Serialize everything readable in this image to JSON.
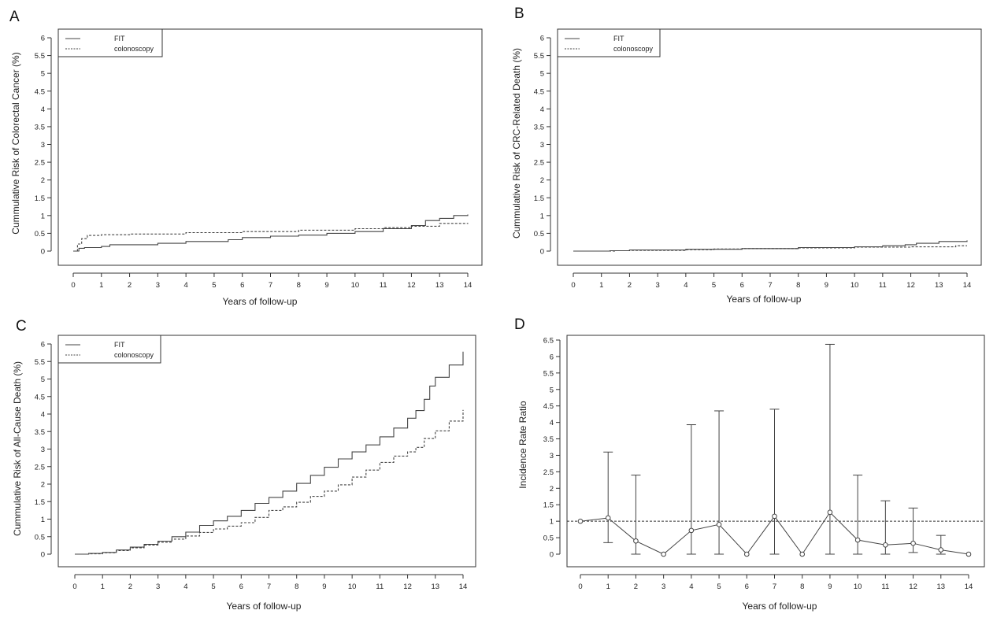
{
  "colors": {
    "axis": "#333333",
    "line": "#444444",
    "background": "#ffffff"
  },
  "chart_data": [
    {
      "id": "A",
      "type": "line",
      "panel_label": "A",
      "xlabel": "Years of follow-up",
      "ylabel": "Cummulative Risk of Colorectal Cancer (%)",
      "xlim": [
        0,
        14
      ],
      "ylim": [
        0,
        6
      ],
      "xticks": [
        "0",
        "1",
        "2",
        "3",
        "4",
        "5",
        "6",
        "7",
        "8",
        "9",
        "10",
        "11",
        "12",
        "13",
        "14"
      ],
      "yticks": [
        "0",
        "0.5",
        "1",
        "1.5",
        "2",
        "2.5",
        "3",
        "3.5",
        "4",
        "4.5",
        "5",
        "5.5",
        "6"
      ],
      "legend_position": "top-left",
      "series": [
        {
          "name": "FIT",
          "style": "solid",
          "x": [
            0,
            0.2,
            0.4,
            1.0,
            1.3,
            3.0,
            4.0,
            5.5,
            6.0,
            7.0,
            8.0,
            9.0,
            10.0,
            11.0,
            12.0,
            12.5,
            13.0,
            13.5,
            14.0
          ],
          "y": [
            0,
            0.08,
            0.1,
            0.13,
            0.18,
            0.22,
            0.27,
            0.32,
            0.38,
            0.42,
            0.45,
            0.5,
            0.55,
            0.63,
            0.72,
            0.86,
            0.92,
            1.0,
            1.03
          ]
        },
        {
          "name": "colonoscopy",
          "style": "dashed",
          "x": [
            0,
            0.15,
            0.3,
            0.5,
            1.0,
            2.0,
            4.0,
            6.0,
            8.0,
            10.0,
            11.0,
            12.0,
            13.0,
            14.0
          ],
          "y": [
            0,
            0.2,
            0.35,
            0.44,
            0.46,
            0.48,
            0.52,
            0.55,
            0.59,
            0.63,
            0.66,
            0.7,
            0.78,
            0.79
          ]
        }
      ]
    },
    {
      "id": "B",
      "type": "line",
      "panel_label": "B",
      "xlabel": "Years of follow-up",
      "ylabel": "Cummulative Risk of CRC-Related Death (%)",
      "xlim": [
        0,
        14
      ],
      "ylim": [
        0,
        6
      ],
      "xticks": [
        "0",
        "1",
        "2",
        "3",
        "4",
        "5",
        "6",
        "7",
        "8",
        "9",
        "10",
        "11",
        "12",
        "13",
        "14"
      ],
      "yticks": [
        "0",
        "0.5",
        "1",
        "1.5",
        "2",
        "2.5",
        "3",
        "3.5",
        "4",
        "4.5",
        "5",
        "5.5",
        "6"
      ],
      "legend_position": "top-left",
      "series": [
        {
          "name": "FIT",
          "style": "solid",
          "x": [
            0,
            1.3,
            2.0,
            4.0,
            6.0,
            8.0,
            10.0,
            11.0,
            11.8,
            12.2,
            13.0,
            14.0
          ],
          "y": [
            0,
            0.01,
            0.03,
            0.05,
            0.07,
            0.1,
            0.12,
            0.15,
            0.18,
            0.22,
            0.27,
            0.3
          ]
        },
        {
          "name": "colonoscopy",
          "style": "dashed",
          "x": [
            0,
            1.5,
            2.0,
            4.0,
            5.0,
            6.0,
            8.0,
            10.0,
            12.0,
            13.0,
            13.6,
            14.0
          ],
          "y": [
            0,
            0.01,
            0.02,
            0.04,
            0.06,
            0.07,
            0.09,
            0.11,
            0.12,
            0.12,
            0.15,
            0.15
          ]
        }
      ]
    },
    {
      "id": "C",
      "type": "line",
      "panel_label": "C",
      "xlabel": "Years of follow-up",
      "ylabel": "Cummulative Risk of All-Cause Death (%)",
      "xlim": [
        0,
        14
      ],
      "ylim": [
        0,
        6
      ],
      "xticks": [
        "0",
        "1",
        "2",
        "3",
        "4",
        "5",
        "6",
        "7",
        "8",
        "9",
        "10",
        "11",
        "12",
        "13",
        "14"
      ],
      "yticks": [
        "0",
        "0.5",
        "1",
        "1.5",
        "2",
        "2.5",
        "3",
        "3.5",
        "4",
        "4.5",
        "5",
        "5.5",
        "6"
      ],
      "legend_position": "top-left",
      "series": [
        {
          "name": "FIT",
          "style": "solid",
          "x": [
            0,
            0.5,
            1.0,
            1.5,
            2.0,
            2.5,
            3.0,
            3.5,
            4.0,
            4.5,
            5.0,
            5.5,
            6.0,
            6.5,
            7.0,
            7.5,
            8.0,
            8.5,
            9.0,
            9.5,
            10.0,
            10.5,
            11.0,
            11.5,
            12.0,
            12.3,
            12.6,
            12.8,
            13.0,
            13.5,
            14.0
          ],
          "y": [
            0,
            0.02,
            0.05,
            0.12,
            0.2,
            0.28,
            0.37,
            0.5,
            0.63,
            0.82,
            0.95,
            1.08,
            1.25,
            1.45,
            1.62,
            1.8,
            2.02,
            2.25,
            2.48,
            2.72,
            2.92,
            3.12,
            3.35,
            3.6,
            3.88,
            4.1,
            4.42,
            4.8,
            5.05,
            5.4,
            5.78
          ]
        },
        {
          "name": "colonoscopy",
          "style": "dashed",
          "x": [
            0,
            0.5,
            1.0,
            1.5,
            2.0,
            2.5,
            3.0,
            3.5,
            4.0,
            4.5,
            5.0,
            5.5,
            6.0,
            6.5,
            7.0,
            7.5,
            8.0,
            8.5,
            9.0,
            9.5,
            10.0,
            10.5,
            11.0,
            11.5,
            12.0,
            12.3,
            12.6,
            13.0,
            13.5,
            14.0
          ],
          "y": [
            0,
            0.01,
            0.04,
            0.1,
            0.18,
            0.26,
            0.34,
            0.43,
            0.52,
            0.62,
            0.72,
            0.8,
            0.9,
            1.05,
            1.25,
            1.35,
            1.48,
            1.65,
            1.8,
            1.98,
            2.2,
            2.4,
            2.62,
            2.8,
            2.92,
            3.05,
            3.3,
            3.52,
            3.8,
            4.12
          ]
        }
      ]
    },
    {
      "id": "D",
      "type": "errorbar",
      "panel_label": "D",
      "xlabel": "Years of follow-up",
      "ylabel": "Incidence Rate Ratio",
      "xlim": [
        0,
        14
      ],
      "ylim": [
        0,
        6.5
      ],
      "xticks": [
        "0",
        "1",
        "2",
        "3",
        "4",
        "5",
        "6",
        "7",
        "8",
        "9",
        "10",
        "11",
        "12",
        "13",
        "14"
      ],
      "yticks": [
        "0",
        "0.5",
        "1",
        "1.5",
        "2",
        "2.5",
        "3",
        "3.5",
        "4",
        "4.5",
        "5",
        "5.5",
        "6",
        "6.5"
      ],
      "reference_line": 1,
      "x": [
        0,
        1,
        2,
        3,
        4,
        5,
        6,
        7,
        8,
        9,
        10,
        11,
        12,
        13,
        14
      ],
      "values": [
        1.0,
        1.1,
        0.4,
        0.0,
        0.72,
        0.9,
        0.0,
        1.15,
        0.0,
        1.27,
        0.43,
        0.28,
        0.33,
        0.13,
        0.0
      ],
      "lower": [
        null,
        0.35,
        0.0,
        null,
        0.0,
        0.0,
        null,
        0.0,
        null,
        0.0,
        0.0,
        0.0,
        0.05,
        0.0,
        null
      ],
      "upper": [
        null,
        3.1,
        2.4,
        null,
        3.93,
        4.35,
        null,
        4.4,
        null,
        6.37,
        2.4,
        1.62,
        1.4,
        0.57,
        null
      ]
    }
  ]
}
